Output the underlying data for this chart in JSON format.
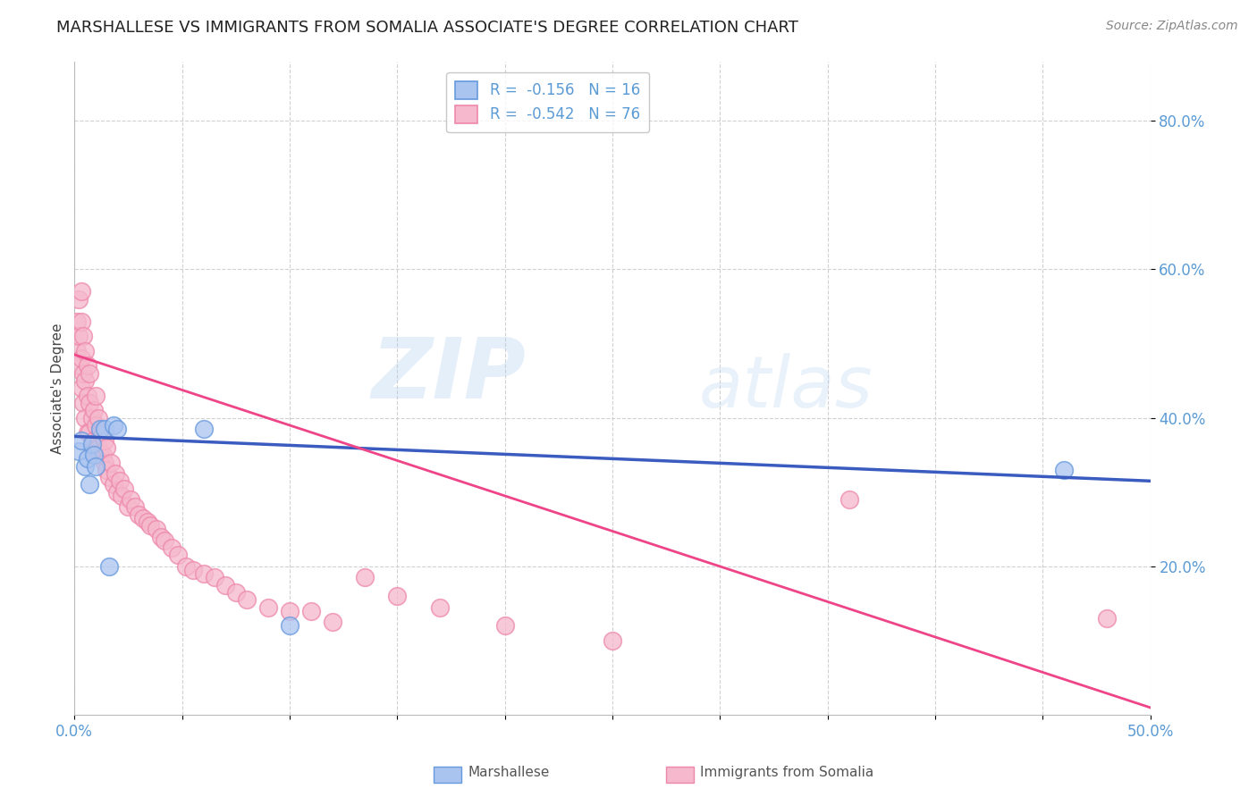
{
  "title": "MARSHALLESE VS IMMIGRANTS FROM SOMALIA ASSOCIATE'S DEGREE CORRELATION CHART",
  "source": "Source: ZipAtlas.com",
  "ylabel": "Associate's Degree",
  "xlim": [
    0.0,
    0.5
  ],
  "ylim": [
    0.0,
    0.88
  ],
  "yticks": [
    0.2,
    0.4,
    0.6,
    0.8
  ],
  "ytick_labels": [
    "20.0%",
    "40.0%",
    "60.0%",
    "80.0%"
  ],
  "xticks": [
    0.0,
    0.05,
    0.1,
    0.15,
    0.2,
    0.25,
    0.3,
    0.35,
    0.4,
    0.45,
    0.5
  ],
  "background_color": "#ffffff",
  "watermark_zip": "ZIP",
  "watermark_atlas": "atlas",
  "legend_blue_label": "R =  -0.156   N = 16",
  "legend_pink_label": "R =  -0.542   N = 76",
  "blue_color": "#aac4f0",
  "pink_color": "#f5b8cc",
  "blue_edge_color": "#6699dd",
  "pink_edge_color": "#ee88aa",
  "blue_line_color": "#3a5bbf",
  "pink_line_color": "#ee4488",
  "marshallese_x": [
    0.002,
    0.003,
    0.005,
    0.006,
    0.007,
    0.008,
    0.009,
    0.01,
    0.012,
    0.014,
    0.016,
    0.018,
    0.02,
    0.06,
    0.1,
    0.46
  ],
  "marshallese_y": [
    0.355,
    0.37,
    0.335,
    0.345,
    0.31,
    0.365,
    0.35,
    0.335,
    0.385,
    0.385,
    0.2,
    0.39,
    0.385,
    0.385,
    0.12,
    0.33
  ],
  "somalia_x": [
    0.001,
    0.001,
    0.002,
    0.002,
    0.002,
    0.003,
    0.003,
    0.003,
    0.003,
    0.004,
    0.004,
    0.004,
    0.005,
    0.005,
    0.005,
    0.006,
    0.006,
    0.006,
    0.007,
    0.007,
    0.007,
    0.008,
    0.008,
    0.009,
    0.009,
    0.01,
    0.01,
    0.01,
    0.011,
    0.011,
    0.012,
    0.012,
    0.013,
    0.013,
    0.014,
    0.014,
    0.015,
    0.015,
    0.016,
    0.017,
    0.018,
    0.019,
    0.02,
    0.021,
    0.022,
    0.023,
    0.025,
    0.026,
    0.028,
    0.03,
    0.032,
    0.034,
    0.035,
    0.038,
    0.04,
    0.042,
    0.045,
    0.048,
    0.052,
    0.055,
    0.06,
    0.065,
    0.07,
    0.075,
    0.08,
    0.09,
    0.1,
    0.11,
    0.12,
    0.135,
    0.15,
    0.17,
    0.2,
    0.25,
    0.36,
    0.48
  ],
  "somalia_y": [
    0.49,
    0.53,
    0.47,
    0.51,
    0.56,
    0.44,
    0.48,
    0.53,
    0.57,
    0.42,
    0.46,
    0.51,
    0.4,
    0.45,
    0.49,
    0.38,
    0.43,
    0.47,
    0.38,
    0.42,
    0.46,
    0.36,
    0.4,
    0.37,
    0.41,
    0.36,
    0.39,
    0.43,
    0.36,
    0.4,
    0.35,
    0.38,
    0.35,
    0.38,
    0.34,
    0.37,
    0.33,
    0.36,
    0.32,
    0.34,
    0.31,
    0.325,
    0.3,
    0.315,
    0.295,
    0.305,
    0.28,
    0.29,
    0.28,
    0.27,
    0.265,
    0.26,
    0.255,
    0.25,
    0.24,
    0.235,
    0.225,
    0.215,
    0.2,
    0.195,
    0.19,
    0.185,
    0.175,
    0.165,
    0.155,
    0.145,
    0.14,
    0.14,
    0.125,
    0.185,
    0.16,
    0.145,
    0.12,
    0.1,
    0.29,
    0.13
  ],
  "blue_trendline_x": [
    0.0,
    0.5
  ],
  "blue_trendline_y": [
    0.375,
    0.315
  ],
  "pink_trendline_x": [
    0.0,
    0.5
  ],
  "pink_trendline_y": [
    0.485,
    0.01
  ],
  "grid_color": "#cccccc",
  "title_fontsize": 13,
  "tick_label_color": "#5b9bd5",
  "ylabel_color": "#444444"
}
